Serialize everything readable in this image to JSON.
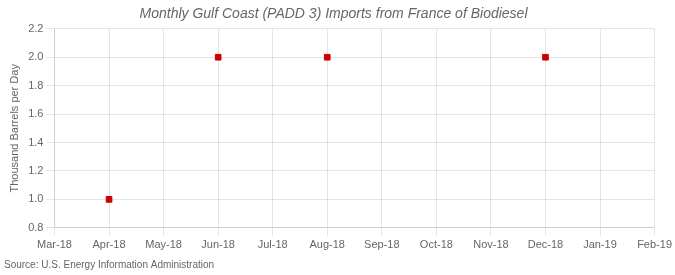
{
  "chart_data": {
    "type": "scatter",
    "title": "Monthly Gulf Coast (PADD 3) Imports from France of Biodiesel",
    "ylabel": "Thousand Barrels per Day",
    "source": "Source: U.S. Energy Information Administration",
    "categories": [
      "Mar-18",
      "Apr-18",
      "May-18",
      "Jun-18",
      "Jul-18",
      "Aug-18",
      "Sep-18",
      "Oct-18",
      "Nov-18",
      "Dec-18",
      "Jan-19",
      "Feb-19"
    ],
    "values": [
      null,
      1.0,
      null,
      2.0,
      null,
      2.0,
      null,
      null,
      null,
      2.0,
      null,
      null
    ],
    "color": "#cc0000",
    "marker": "square",
    "ylim": [
      0.8,
      2.2
    ],
    "yticks": [
      0.8,
      {
        "value": 1,
        "label": "1.0"
      },
      1.2,
      1.4,
      1.6,
      1.8,
      {
        "value": 2,
        "label": "2.0"
      },
      2.2
    ],
    "grid": true
  }
}
